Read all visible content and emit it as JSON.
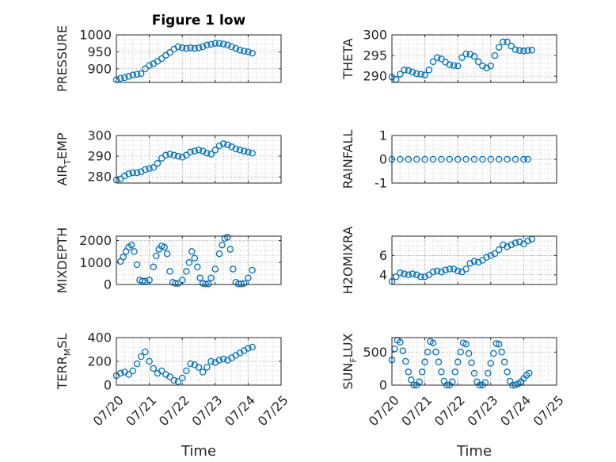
{
  "figure_title": "Figure 1 low",
  "colors": {
    "marker": "#0072bd",
    "axis": "#262626",
    "grid": "#b0b0b0"
  },
  "chart_data": [
    {
      "type": "scatter",
      "ylabel": "PRESSURE",
      "ylabel_parts": [
        "PRESSURE"
      ],
      "xlim": [
        "07/20",
        "07/24 06:00"
      ],
      "ylim": [
        860,
        1000
      ],
      "yticks": [
        900,
        950,
        1000
      ],
      "ytick_labels": [
        "900",
        "950",
        "1000"
      ],
      "grid": true,
      "minor_grid": true,
      "x": [
        "07/20 00:00",
        "07/20 03:00",
        "07/20 06:00",
        "07/20 09:00",
        "07/20 12:00",
        "07/20 15:00",
        "07/20 18:00",
        "07/20 21:00",
        "07/21 00:00",
        "07/21 03:00",
        "07/21 06:00",
        "07/21 09:00",
        "07/21 12:00",
        "07/21 15:00",
        "07/21 18:00",
        "07/21 21:00",
        "07/22 00:00",
        "07/22 03:00",
        "07/22 06:00",
        "07/22 09:00",
        "07/22 12:00",
        "07/22 15:00",
        "07/22 18:00",
        "07/22 21:00",
        "07/23 00:00",
        "07/23 03:00",
        "07/23 06:00",
        "07/23 09:00",
        "07/23 12:00",
        "07/23 15:00",
        "07/23 18:00",
        "07/23 21:00",
        "07/24 00:00",
        "07/24 03:00"
      ],
      "y": [
        868,
        872,
        874,
        878,
        882,
        884,
        886,
        900,
        910,
        915,
        922,
        930,
        940,
        948,
        958,
        965,
        962,
        960,
        962,
        960,
        962,
        965,
        970,
        972,
        975,
        975,
        973,
        970,
        965,
        960,
        955,
        952,
        950,
        946
      ]
    },
    {
      "type": "scatter",
      "ylabel": "THETA",
      "ylabel_parts": [
        "THETA"
      ],
      "xlim": [
        "07/20",
        "07/24 06:00"
      ],
      "ylim": [
        288.5,
        300
      ],
      "yticks": [
        290,
        295,
        300
      ],
      "ytick_labels": [
        "290",
        "295",
        "300"
      ],
      "grid": true,
      "minor_grid": true,
      "x": [
        "07/20 00:00",
        "07/20 03:00",
        "07/20 06:00",
        "07/20 09:00",
        "07/20 12:00",
        "07/20 15:00",
        "07/20 18:00",
        "07/20 21:00",
        "07/21 00:00",
        "07/21 03:00",
        "07/21 06:00",
        "07/21 09:00",
        "07/21 12:00",
        "07/21 15:00",
        "07/21 18:00",
        "07/21 21:00",
        "07/22 00:00",
        "07/22 03:00",
        "07/22 06:00",
        "07/22 09:00",
        "07/22 12:00",
        "07/22 15:00",
        "07/22 18:00",
        "07/22 21:00",
        "07/23 00:00",
        "07/23 03:00",
        "07/23 06:00",
        "07/23 09:00",
        "07/23 12:00",
        "07/23 15:00",
        "07/23 18:00",
        "07/23 21:00",
        "07/24 00:00",
        "07/24 03:00",
        "07/24 06:00"
      ],
      "y": [
        289.8,
        289.2,
        290.5,
        291.5,
        291.4,
        291.0,
        290.6,
        290.5,
        290.3,
        291.5,
        293.5,
        294.5,
        294.2,
        293.4,
        292.8,
        292.6,
        292.5,
        294.5,
        295.4,
        295.3,
        294.8,
        293.5,
        292.5,
        292.0,
        292.5,
        295.0,
        297.0,
        298.3,
        298.3,
        297.3,
        296.4,
        296.2,
        296.1,
        296.2,
        296.3
      ]
    },
    {
      "type": "scatter",
      "ylabel": "AIR_TEMP",
      "ylabel_parts": [
        "AIR",
        "T",
        "EMP"
      ],
      "xlim": [
        "07/20",
        "07/24 06:00"
      ],
      "ylim": [
        277,
        300
      ],
      "yticks": [
        280,
        290,
        300
      ],
      "ytick_labels": [
        "280",
        "290",
        "300"
      ],
      "grid": true,
      "minor_grid": true,
      "x": [
        "07/20 00:00",
        "07/20 03:00",
        "07/20 06:00",
        "07/20 09:00",
        "07/20 12:00",
        "07/20 15:00",
        "07/20 18:00",
        "07/20 21:00",
        "07/21 00:00",
        "07/21 03:00",
        "07/21 06:00",
        "07/21 09:00",
        "07/21 12:00",
        "07/21 15:00",
        "07/21 18:00",
        "07/21 21:00",
        "07/22 00:00",
        "07/22 03:00",
        "07/22 06:00",
        "07/22 09:00",
        "07/22 12:00",
        "07/22 15:00",
        "07/22 18:00",
        "07/22 21:00",
        "07/23 00:00",
        "07/23 03:00",
        "07/23 06:00",
        "07/23 09:00",
        "07/23 12:00",
        "07/23 15:00",
        "07/23 18:00",
        "07/23 21:00",
        "07/24 00:00",
        "07/24 03:00"
      ],
      "y": [
        278.5,
        279.0,
        280.5,
        281.5,
        282.0,
        282.0,
        282.5,
        283.5,
        284.0,
        284.5,
        286.5,
        289.0,
        290.5,
        291.0,
        290.5,
        290.0,
        289.5,
        290.5,
        292.0,
        292.5,
        293.0,
        292.5,
        291.5,
        291.0,
        293.0,
        295.0,
        296.0,
        295.5,
        294.5,
        293.5,
        293.0,
        292.5,
        292.0,
        291.5
      ]
    },
    {
      "type": "scatter",
      "ylabel": "RAINFALL",
      "ylabel_parts": [
        "RAINFALL"
      ],
      "xlim": [
        "07/20",
        "07/24 06:00"
      ],
      "ylim": [
        -1,
        1
      ],
      "yticks": [
        -1,
        0,
        1
      ],
      "ytick_labels": [
        "-1",
        "0",
        "1"
      ],
      "grid": true,
      "minor_grid": true,
      "x": [
        "07/20 00:00",
        "07/20 06:00",
        "07/20 12:00",
        "07/20 18:00",
        "07/21 00:00",
        "07/21 06:00",
        "07/21 12:00",
        "07/21 18:00",
        "07/22 00:00",
        "07/22 06:00",
        "07/22 12:00",
        "07/22 18:00",
        "07/23 00:00",
        "07/23 06:00",
        "07/23 12:00",
        "07/23 18:00",
        "07/24 00:00",
        "07/24 03:00"
      ],
      "y": [
        0,
        0,
        0,
        0,
        0,
        0,
        0,
        0,
        0,
        0,
        0,
        0,
        0,
        0,
        0,
        0,
        0,
        0
      ]
    },
    {
      "type": "scatter",
      "ylabel": "MIXDEPTH",
      "ylabel_parts": [
        "MIXDEPTH"
      ],
      "xlim": [
        "07/20",
        "07/24 06:00"
      ],
      "ylim": [
        0,
        2200
      ],
      "yticks": [
        0,
        1000,
        2000
      ],
      "ytick_labels": [
        "0",
        "1000",
        "2000"
      ],
      "grid": true,
      "minor_grid": true,
      "x": [
        "07/20 03:00",
        "07/20 05:00",
        "07/20 07:00",
        "07/20 09:00",
        "07/20 11:00",
        "07/20 13:00",
        "07/20 15:00",
        "07/20 17:00",
        "07/20 19:00",
        "07/20 21:00",
        "07/21 00:00",
        "07/21 03:00",
        "07/21 05:00",
        "07/21 07:00",
        "07/21 09:00",
        "07/21 11:00",
        "07/21 13:00",
        "07/21 15:00",
        "07/21 17:00",
        "07/21 19:00",
        "07/21 21:00",
        "07/22 00:00",
        "07/22 03:00",
        "07/22 05:00",
        "07/22 07:00",
        "07/22 09:00",
        "07/22 11:00",
        "07/22 13:00",
        "07/22 15:00",
        "07/22 17:00",
        "07/22 19:00",
        "07/22 21:00",
        "07/23 00:00",
        "07/23 03:00",
        "07/23 05:00",
        "07/23 07:00",
        "07/23 09:00",
        "07/23 11:00",
        "07/23 13:00",
        "07/23 15:00",
        "07/23 17:00",
        "07/23 19:00",
        "07/23 21:00",
        "07/24 00:00",
        "07/24 03:00"
      ],
      "y": [
        1050,
        1250,
        1500,
        1700,
        1800,
        1500,
        900,
        200,
        150,
        150,
        200,
        800,
        1300,
        1600,
        1750,
        1700,
        1400,
        600,
        100,
        50,
        50,
        200,
        600,
        1000,
        1500,
        1200,
        800,
        300,
        50,
        30,
        30,
        300,
        700,
        1400,
        1800,
        2100,
        2150,
        1600,
        700,
        100,
        30,
        30,
        50,
        300,
        650
      ]
    },
    {
      "type": "scatter",
      "ylabel": "H2OMIXRA",
      "ylabel_parts": [
        "H2OMIXRA"
      ],
      "xlim": [
        "07/20",
        "07/24 06:00"
      ],
      "ylim": [
        3,
        8
      ],
      "yticks": [
        4,
        6
      ],
      "ytick_labels": [
        "4",
        "6"
      ],
      "grid": true,
      "minor_grid": true,
      "x": [
        "07/20 00:00",
        "07/20 03:00",
        "07/20 06:00",
        "07/20 09:00",
        "07/20 12:00",
        "07/20 15:00",
        "07/20 18:00",
        "07/20 21:00",
        "07/21 00:00",
        "07/21 03:00",
        "07/21 06:00",
        "07/21 09:00",
        "07/21 12:00",
        "07/21 15:00",
        "07/21 18:00",
        "07/21 21:00",
        "07/22 00:00",
        "07/22 03:00",
        "07/22 06:00",
        "07/22 09:00",
        "07/22 12:00",
        "07/22 15:00",
        "07/22 18:00",
        "07/22 21:00",
        "07/23 00:00",
        "07/23 03:00",
        "07/23 06:00",
        "07/23 09:00",
        "07/23 12:00",
        "07/23 15:00",
        "07/23 18:00",
        "07/23 21:00",
        "07/24 00:00",
        "07/24 03:00",
        "07/24 06:00"
      ],
      "y": [
        3.3,
        3.8,
        4.2,
        4.1,
        4.0,
        4.1,
        4.0,
        3.8,
        3.8,
        4.0,
        4.3,
        4.4,
        4.3,
        4.5,
        4.6,
        4.6,
        4.4,
        4.3,
        4.6,
        5.2,
        5.4,
        5.3,
        5.5,
        5.8,
        6.0,
        6.2,
        6.6,
        7.1,
        6.9,
        7.1,
        7.3,
        7.4,
        7.2,
        7.5,
        7.7
      ]
    },
    {
      "type": "scatter",
      "ylabel": "TERR_MSL",
      "ylabel_parts": [
        "TERR",
        "M",
        "SL"
      ],
      "xlim": [
        "07/20",
        "07/24 06:00"
      ],
      "ylim": [
        0,
        400
      ],
      "yticks": [
        0,
        200,
        400
      ],
      "ytick_labels": [
        "0",
        "200",
        "400"
      ],
      "grid": true,
      "minor_grid": true,
      "x": [
        "07/20 00:00",
        "07/20 03:00",
        "07/20 06:00",
        "07/20 09:00",
        "07/20 12:00",
        "07/20 15:00",
        "07/20 18:00",
        "07/20 21:00",
        "07/21 00:00",
        "07/21 03:00",
        "07/21 06:00",
        "07/21 09:00",
        "07/21 12:00",
        "07/21 15:00",
        "07/21 18:00",
        "07/21 21:00",
        "07/22 00:00",
        "07/22 03:00",
        "07/22 06:00",
        "07/22 09:00",
        "07/22 12:00",
        "07/22 15:00",
        "07/22 18:00",
        "07/22 21:00",
        "07/23 00:00",
        "07/23 03:00",
        "07/23 06:00",
        "07/23 09:00",
        "07/23 12:00",
        "07/23 15:00",
        "07/23 18:00",
        "07/23 21:00",
        "07/24 00:00",
        "07/24 03:00"
      ],
      "y": [
        80,
        100,
        110,
        90,
        120,
        180,
        240,
        280,
        200,
        140,
        100,
        120,
        90,
        70,
        40,
        30,
        60,
        120,
        180,
        170,
        150,
        110,
        150,
        200,
        190,
        210,
        220,
        210,
        230,
        250,
        270,
        290,
        310,
        320
      ]
    },
    {
      "type": "scatter",
      "ylabel": "SUN_FLUX",
      "ylabel_parts": [
        "SUN",
        "F",
        "LUX"
      ],
      "xlim": [
        "07/20",
        "07/24 06:00"
      ],
      "ylim": [
        0,
        720
      ],
      "yticks": [
        0,
        500
      ],
      "ytick_labels": [
        "0",
        "500"
      ],
      "grid": true,
      "minor_grid": true,
      "x": [
        "07/20 00:00",
        "07/20 02:00",
        "07/20 04:00",
        "07/20 06:00",
        "07/20 08:00",
        "07/20 10:00",
        "07/20 12:00",
        "07/20 14:00",
        "07/20 16:00",
        "07/20 18:00",
        "07/20 20:00",
        "07/20 22:00",
        "07/21 00:00",
        "07/21 02:00",
        "07/21 04:00",
        "07/21 06:00",
        "07/21 08:00",
        "07/21 10:00",
        "07/21 12:00",
        "07/21 14:00",
        "07/21 16:00",
        "07/21 18:00",
        "07/21 20:00",
        "07/21 22:00",
        "07/22 00:00",
        "07/22 02:00",
        "07/22 04:00",
        "07/22 06:00",
        "07/22 08:00",
        "07/22 10:00",
        "07/22 12:00",
        "07/22 14:00",
        "07/22 16:00",
        "07/22 18:00",
        "07/22 20:00",
        "07/22 22:00",
        "07/23 00:00",
        "07/23 02:00",
        "07/23 04:00",
        "07/23 06:00",
        "07/23 08:00",
        "07/23 10:00",
        "07/23 12:00",
        "07/23 14:00",
        "07/23 16:00",
        "07/23 18:00",
        "07/23 20:00",
        "07/23 22:00",
        "07/24 00:00",
        "07/24 02:00",
        "07/24 04:00"
      ],
      "y": [
        380,
        550,
        680,
        650,
        520,
        360,
        200,
        80,
        0,
        0,
        50,
        200,
        350,
        500,
        660,
        640,
        500,
        350,
        200,
        60,
        0,
        0,
        50,
        200,
        350,
        500,
        640,
        620,
        480,
        340,
        180,
        50,
        0,
        0,
        40,
        180,
        330,
        480,
        630,
        620,
        500,
        350,
        200,
        60,
        0,
        0,
        20,
        50,
        100,
        150,
        180
      ]
    }
  ],
  "x_axis": {
    "label": "Time",
    "ticks": [
      "07/20",
      "07/21",
      "07/22",
      "07/23",
      "07/24",
      "07/25"
    ]
  }
}
